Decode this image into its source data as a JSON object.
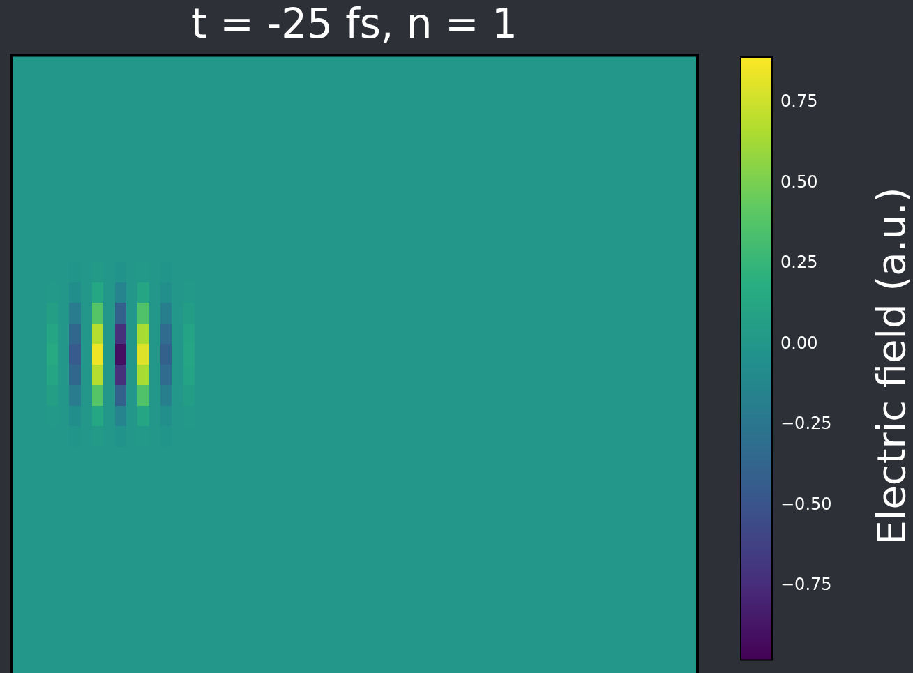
{
  "chart_data": {
    "type": "heatmap",
    "title": "t = -25 fs, n = 1",
    "clabel": "Electric field (a.u.)",
    "categories": [
      null,
      null,
      null,
      null,
      null,
      null,
      null,
      null,
      null,
      null,
      null,
      null,
      null,
      null,
      null,
      null,
      null,
      null,
      null,
      null,
      null,
      null,
      null,
      null,
      null,
      null,
      null,
      null,
      null,
      null,
      null,
      null,
      null,
      null,
      null,
      null,
      null,
      null,
      null,
      null,
      null,
      null,
      null,
      null,
      null,
      null,
      null,
      null,
      null,
      null,
      null,
      null,
      null,
      null,
      null,
      null,
      null,
      null,
      null,
      null
    ],
    "y_categories": [
      null,
      null,
      null,
      null,
      null,
      null,
      null,
      null,
      null,
      null,
      null,
      null,
      null,
      null,
      null,
      null,
      null,
      null,
      null,
      null,
      null,
      null,
      null,
      null,
      null,
      null,
      null,
      null,
      null,
      null
    ],
    "clim": [
      -0.98,
      0.89
    ],
    "cticks": [
      {
        "value": -0.75,
        "label": "−0.75"
      },
      {
        "value": -0.5,
        "label": "−0.50"
      },
      {
        "value": -0.25,
        "label": "−0.25"
      },
      {
        "value": 0,
        "label": "0.00"
      },
      {
        "value": 0.25,
        "label": "0.25"
      },
      {
        "value": 0.5,
        "label": "0.50"
      },
      {
        "value": 0.75,
        "label": "0.75"
      }
    ],
    "cells": [
      [
        0,
        0,
        0,
        0,
        0,
        0,
        0,
        0,
        0,
        0,
        0,
        0,
        0,
        0,
        0,
        0,
        0,
        0,
        0,
        0,
        0,
        0,
        0,
        0,
        0,
        0,
        0,
        0,
        0,
        0,
        0,
        0,
        0,
        0,
        0,
        0,
        0,
        0,
        0,
        0,
        0,
        0,
        0,
        0,
        0,
        0,
        0,
        0,
        0,
        0,
        0,
        0,
        0,
        0,
        0,
        0,
        0,
        0,
        0,
        0
      ],
      [
        0,
        0,
        0,
        0,
        0,
        0,
        0,
        0,
        0,
        0,
        0,
        0,
        0,
        0,
        0,
        0,
        0,
        0,
        0,
        0,
        0,
        0,
        0,
        0,
        0,
        0,
        0,
        0,
        0,
        0,
        0,
        0,
        0,
        0,
        0,
        0,
        0,
        0,
        0,
        0,
        0,
        0,
        0,
        0,
        0,
        0,
        0,
        0,
        0,
        0,
        0,
        0,
        0,
        0,
        0,
        0,
        0,
        0,
        0,
        0
      ],
      [
        0,
        0,
        0,
        0,
        0,
        0,
        0,
        0,
        0,
        0,
        0,
        0,
        0,
        0,
        0,
        0,
        0,
        0,
        0,
        0,
        0,
        0,
        0,
        0,
        0,
        0,
        0,
        0,
        0,
        0,
        0,
        0,
        0,
        0,
        0,
        0,
        0,
        0,
        0,
        0,
        0,
        0,
        0,
        0,
        0,
        0,
        0,
        0,
        0,
        0,
        0,
        0,
        0,
        0,
        0,
        0,
        0,
        0,
        0,
        0
      ],
      [
        0,
        0,
        0,
        0,
        0,
        0,
        0,
        0,
        0,
        0,
        0,
        0,
        0,
        0,
        0,
        0,
        0,
        0,
        0,
        0,
        0,
        0,
        0,
        0,
        0,
        0,
        0,
        0,
        0,
        0,
        0,
        0,
        0,
        0,
        0,
        0,
        0,
        0,
        0,
        0,
        0,
        0,
        0,
        0,
        0,
        0,
        0,
        0,
        0,
        0,
        0,
        0,
        0,
        0,
        0,
        0,
        0,
        0,
        0,
        0
      ],
      [
        0,
        0,
        0,
        0,
        0,
        0,
        0,
        0,
        0,
        0,
        0,
        0,
        0,
        0,
        0,
        0,
        0,
        0,
        0,
        0,
        0,
        0,
        0,
        0,
        0,
        0,
        0,
        0,
        0,
        0,
        0,
        0,
        0,
        0,
        0,
        0,
        0,
        0,
        0,
        0,
        0,
        0,
        0,
        0,
        0,
        0,
        0,
        0,
        0,
        0,
        0,
        0,
        0,
        0,
        0,
        0,
        0,
        0,
        0,
        0
      ],
      [
        0,
        0,
        0,
        0,
        0,
        0,
        0,
        0,
        0,
        0,
        0,
        0,
        0,
        0,
        0,
        0,
        0,
        0,
        0,
        0,
        0,
        0,
        0,
        0,
        0,
        0,
        0,
        0,
        0,
        0,
        0,
        0,
        0,
        0,
        0,
        0,
        0,
        0,
        0,
        0,
        0,
        0,
        0,
        0,
        0,
        0,
        0,
        0,
        0,
        0,
        0,
        0,
        0,
        0,
        0,
        0,
        0,
        0,
        0,
        0
      ],
      [
        0,
        0,
        0,
        0,
        0,
        0,
        0,
        0,
        0,
        0,
        0,
        0,
        0,
        0,
        0,
        0,
        0,
        0,
        0,
        0,
        0,
        0,
        0,
        0,
        0,
        0,
        0,
        0,
        0,
        0,
        0,
        0,
        0,
        0,
        0,
        0,
        0,
        0,
        0,
        0,
        0,
        0,
        0,
        0,
        0,
        0,
        0,
        0,
        0,
        0,
        0,
        0,
        0,
        0,
        0,
        0,
        0,
        0,
        0,
        0
      ],
      [
        0,
        0,
        0,
        0,
        0,
        0,
        0,
        0,
        0,
        0,
        0,
        0,
        0,
        0,
        0,
        0,
        0,
        0,
        0,
        0,
        0,
        0,
        0,
        0,
        0,
        0,
        0,
        0,
        0,
        0,
        0,
        0,
        0,
        0,
        0,
        0,
        0,
        0,
        0,
        0,
        0,
        0,
        0,
        0,
        0,
        0,
        0,
        0,
        0,
        0,
        0,
        0,
        0,
        0,
        0,
        0,
        0,
        0,
        0,
        0
      ],
      [
        0,
        0,
        0,
        0,
        0,
        0,
        0,
        0,
        0,
        0,
        0,
        0,
        0,
        0,
        0,
        0,
        0,
        0,
        0,
        0,
        0,
        0,
        0,
        0,
        0,
        0,
        0,
        0,
        0,
        0,
        0,
        0,
        0,
        0,
        0,
        0,
        0,
        0,
        0,
        0,
        0,
        0,
        0,
        0,
        0,
        0,
        0,
        0,
        0,
        0,
        0,
        0,
        0,
        0,
        0,
        0,
        0,
        0,
        0,
        0
      ],
      [
        0,
        0,
        0,
        0,
        0,
        0,
        0,
        0,
        0,
        0,
        0,
        0,
        0,
        0,
        0,
        0,
        0,
        0,
        0,
        0,
        0,
        0,
        0,
        0,
        0,
        0,
        0,
        0,
        0,
        0,
        0,
        0,
        0,
        0,
        0,
        0,
        0,
        0,
        0,
        0,
        0,
        0,
        0,
        0,
        0,
        0,
        0,
        0,
        0,
        0,
        0,
        0,
        0,
        0,
        0,
        0,
        0,
        0,
        0,
        0
      ],
      [
        0,
        0,
        0,
        0,
        0,
        -0.01,
        0,
        0.03,
        0,
        -0.03,
        0,
        0.02,
        0,
        -0.01,
        0,
        0,
        0,
        0,
        0,
        0,
        0,
        0,
        0,
        0,
        0,
        0,
        0,
        0,
        0,
        0,
        0,
        0,
        0,
        0,
        0,
        0,
        0,
        0,
        0,
        0,
        0,
        0,
        0,
        0,
        0,
        0,
        0,
        0,
        0,
        0,
        0,
        0,
        0,
        0,
        0,
        0,
        0,
        0,
        0,
        0
      ],
      [
        0,
        0,
        0,
        0.02,
        0,
        -0.07,
        0,
        0.13,
        0,
        -0.14,
        0,
        0.12,
        0,
        -0.06,
        0,
        0.02,
        0,
        0,
        0,
        0,
        0,
        0,
        0,
        0,
        0,
        0,
        0,
        0,
        0,
        0,
        0,
        0,
        0,
        0,
        0,
        0,
        0,
        0,
        0,
        0,
        0,
        0,
        0,
        0,
        0,
        0,
        0,
        0,
        0,
        0,
        0,
        0,
        0,
        0,
        0,
        0,
        0,
        0,
        0,
        0
      ],
      [
        0,
        0,
        0,
        0.07,
        0,
        -0.2,
        0,
        0.38,
        0,
        -0.41,
        0,
        0.36,
        0,
        -0.18,
        0,
        0.05,
        0,
        0,
        0,
        0,
        0,
        0,
        0,
        0,
        0,
        0,
        0,
        0,
        0,
        0,
        0,
        0,
        0,
        0,
        0,
        0,
        0,
        0,
        0,
        0,
        0,
        0,
        0,
        0,
        0,
        0,
        0,
        0,
        0,
        0,
        0,
        0,
        0,
        0,
        0,
        0,
        0,
        0,
        0,
        0
      ],
      [
        0,
        0,
        0,
        0.12,
        0,
        -0.36,
        0,
        0.68,
        0,
        -0.72,
        0,
        0.64,
        0,
        -0.32,
        0,
        0.1,
        0,
        0,
        0,
        0,
        0,
        0,
        0,
        0,
        0,
        0,
        0,
        0,
        0,
        0,
        0,
        0,
        0,
        0,
        0,
        0,
        0,
        0,
        0,
        0,
        0,
        0,
        0,
        0,
        0,
        0,
        0,
        0,
        0,
        0,
        0,
        0,
        0,
        0,
        0,
        0,
        0,
        0,
        0,
        0
      ],
      [
        0,
        0,
        0,
        0.15,
        0,
        -0.45,
        0,
        0.85,
        0,
        -0.9,
        0,
        0.8,
        0,
        -0.4,
        0,
        0.12,
        0,
        0,
        0,
        0,
        0,
        0,
        0,
        0,
        0,
        0,
        0,
        0,
        0,
        0,
        0,
        0,
        0,
        0,
        0,
        0,
        0,
        0,
        0,
        0,
        0,
        0,
        0,
        0,
        0,
        0,
        0,
        0,
        0,
        0,
        0,
        0,
        0,
        0,
        0,
        0,
        0,
        0,
        0,
        0
      ],
      [
        0,
        0,
        0,
        0.12,
        0,
        -0.36,
        0,
        0.68,
        0,
        -0.72,
        0,
        0.64,
        0,
        -0.32,
        0,
        0.1,
        0,
        0,
        0,
        0,
        0,
        0,
        0,
        0,
        0,
        0,
        0,
        0,
        0,
        0,
        0,
        0,
        0,
        0,
        0,
        0,
        0,
        0,
        0,
        0,
        0,
        0,
        0,
        0,
        0,
        0,
        0,
        0,
        0,
        0,
        0,
        0,
        0,
        0,
        0,
        0,
        0,
        0,
        0,
        0
      ],
      [
        0,
        0,
        0,
        0.07,
        0,
        -0.2,
        0,
        0.38,
        0,
        -0.41,
        0,
        0.36,
        0,
        -0.18,
        0,
        0.05,
        0,
        0,
        0,
        0,
        0,
        0,
        0,
        0,
        0,
        0,
        0,
        0,
        0,
        0,
        0,
        0,
        0,
        0,
        0,
        0,
        0,
        0,
        0,
        0,
        0,
        0,
        0,
        0,
        0,
        0,
        0,
        0,
        0,
        0,
        0,
        0,
        0,
        0,
        0,
        0,
        0,
        0,
        0,
        0
      ],
      [
        0,
        0,
        0,
        0.02,
        0,
        -0.07,
        0,
        0.13,
        0,
        -0.14,
        0,
        0.12,
        0,
        -0.06,
        0,
        0.02,
        0,
        0,
        0,
        0,
        0,
        0,
        0,
        0,
        0,
        0,
        0,
        0,
        0,
        0,
        0,
        0,
        0,
        0,
        0,
        0,
        0,
        0,
        0,
        0,
        0,
        0,
        0,
        0,
        0,
        0,
        0,
        0,
        0,
        0,
        0,
        0,
        0,
        0,
        0,
        0,
        0,
        0,
        0,
        0
      ],
      [
        0,
        0,
        0,
        0,
        0,
        -0.01,
        0,
        0.03,
        0,
        -0.03,
        0,
        0.02,
        0,
        -0.01,
        0,
        0,
        0,
        0,
        0,
        0,
        0,
        0,
        0,
        0,
        0,
        0,
        0,
        0,
        0,
        0,
        0,
        0,
        0,
        0,
        0,
        0,
        0,
        0,
        0,
        0,
        0,
        0,
        0,
        0,
        0,
        0,
        0,
        0,
        0,
        0,
        0,
        0,
        0,
        0,
        0,
        0,
        0,
        0,
        0,
        0
      ],
      [
        0,
        0,
        0,
        0,
        0,
        0,
        0,
        0,
        0,
        0,
        0,
        0,
        0,
        0,
        0,
        0,
        0,
        0,
        0,
        0,
        0,
        0,
        0,
        0,
        0,
        0,
        0,
        0,
        0,
        0,
        0,
        0,
        0,
        0,
        0,
        0,
        0,
        0,
        0,
        0,
        0,
        0,
        0,
        0,
        0,
        0,
        0,
        0,
        0,
        0,
        0,
        0,
        0,
        0,
        0,
        0,
        0,
        0,
        0,
        0
      ],
      [
        0,
        0,
        0,
        0,
        0,
        0,
        0,
        0,
        0,
        0,
        0,
        0,
        0,
        0,
        0,
        0,
        0,
        0,
        0,
        0,
        0,
        0,
        0,
        0,
        0,
        0,
        0,
        0,
        0,
        0,
        0,
        0,
        0,
        0,
        0,
        0,
        0,
        0,
        0,
        0,
        0,
        0,
        0,
        0,
        0,
        0,
        0,
        0,
        0,
        0,
        0,
        0,
        0,
        0,
        0,
        0,
        0,
        0,
        0,
        0
      ],
      [
        0,
        0,
        0,
        0,
        0,
        0,
        0,
        0,
        0,
        0,
        0,
        0,
        0,
        0,
        0,
        0,
        0,
        0,
        0,
        0,
        0,
        0,
        0,
        0,
        0,
        0,
        0,
        0,
        0,
        0,
        0,
        0,
        0,
        0,
        0,
        0,
        0,
        0,
        0,
        0,
        0,
        0,
        0,
        0,
        0,
        0,
        0,
        0,
        0,
        0,
        0,
        0,
        0,
        0,
        0,
        0,
        0,
        0,
        0,
        0
      ],
      [
        0,
        0,
        0,
        0,
        0,
        0,
        0,
        0,
        0,
        0,
        0,
        0,
        0,
        0,
        0,
        0,
        0,
        0,
        0,
        0,
        0,
        0,
        0,
        0,
        0,
        0,
        0,
        0,
        0,
        0,
        0,
        0,
        0,
        0,
        0,
        0,
        0,
        0,
        0,
        0,
        0,
        0,
        0,
        0,
        0,
        0,
        0,
        0,
        0,
        0,
        0,
        0,
        0,
        0,
        0,
        0,
        0,
        0,
        0,
        0
      ],
      [
        0,
        0,
        0,
        0,
        0,
        0,
        0,
        0,
        0,
        0,
        0,
        0,
        0,
        0,
        0,
        0,
        0,
        0,
        0,
        0,
        0,
        0,
        0,
        0,
        0,
        0,
        0,
        0,
        0,
        0,
        0,
        0,
        0,
        0,
        0,
        0,
        0,
        0,
        0,
        0,
        0,
        0,
        0,
        0,
        0,
        0,
        0,
        0,
        0,
        0,
        0,
        0,
        0,
        0,
        0,
        0,
        0,
        0,
        0,
        0
      ],
      [
        0,
        0,
        0,
        0,
        0,
        0,
        0,
        0,
        0,
        0,
        0,
        0,
        0,
        0,
        0,
        0,
        0,
        0,
        0,
        0,
        0,
        0,
        0,
        0,
        0,
        0,
        0,
        0,
        0,
        0,
        0,
        0,
        0,
        0,
        0,
        0,
        0,
        0,
        0,
        0,
        0,
        0,
        0,
        0,
        0,
        0,
        0,
        0,
        0,
        0,
        0,
        0,
        0,
        0,
        0,
        0,
        0,
        0,
        0,
        0
      ],
      [
        0,
        0,
        0,
        0,
        0,
        0,
        0,
        0,
        0,
        0,
        0,
        0,
        0,
        0,
        0,
        0,
        0,
        0,
        0,
        0,
        0,
        0,
        0,
        0,
        0,
        0,
        0,
        0,
        0,
        0,
        0,
        0,
        0,
        0,
        0,
        0,
        0,
        0,
        0,
        0,
        0,
        0,
        0,
        0,
        0,
        0,
        0,
        0,
        0,
        0,
        0,
        0,
        0,
        0,
        0,
        0,
        0,
        0,
        0,
        0
      ],
      [
        0,
        0,
        0,
        0,
        0,
        0,
        0,
        0,
        0,
        0,
        0,
        0,
        0,
        0,
        0,
        0,
        0,
        0,
        0,
        0,
        0,
        0,
        0,
        0,
        0,
        0,
        0,
        0,
        0,
        0,
        0,
        0,
        0,
        0,
        0,
        0,
        0,
        0,
        0,
        0,
        0,
        0,
        0,
        0,
        0,
        0,
        0,
        0,
        0,
        0,
        0,
        0,
        0,
        0,
        0,
        0,
        0,
        0,
        0,
        0
      ],
      [
        0,
        0,
        0,
        0,
        0,
        0,
        0,
        0,
        0,
        0,
        0,
        0,
        0,
        0,
        0,
        0,
        0,
        0,
        0,
        0,
        0,
        0,
        0,
        0,
        0,
        0,
        0,
        0,
        0,
        0,
        0,
        0,
        0,
        0,
        0,
        0,
        0,
        0,
        0,
        0,
        0,
        0,
        0,
        0,
        0,
        0,
        0,
        0,
        0,
        0,
        0,
        0,
        0,
        0,
        0,
        0,
        0,
        0,
        0,
        0
      ],
      [
        0,
        0,
        0,
        0,
        0,
        0,
        0,
        0,
        0,
        0,
        0,
        0,
        0,
        0,
        0,
        0,
        0,
        0,
        0,
        0,
        0,
        0,
        0,
        0,
        0,
        0,
        0,
        0,
        0,
        0,
        0,
        0,
        0,
        0,
        0,
        0,
        0,
        0,
        0,
        0,
        0,
        0,
        0,
        0,
        0,
        0,
        0,
        0,
        0,
        0,
        0,
        0,
        0,
        0,
        0,
        0,
        0,
        0,
        0,
        0
      ],
      [
        0,
        0,
        0,
        0,
        0,
        0,
        0,
        0,
        0,
        0,
        0,
        0,
        0,
        0,
        0,
        0,
        0,
        0,
        0,
        0,
        0,
        0,
        0,
        0,
        0,
        0,
        0,
        0,
        0,
        0,
        0,
        0,
        0,
        0,
        0,
        0,
        0,
        0,
        0,
        0,
        0,
        0,
        0,
        0,
        0,
        0,
        0,
        0,
        0,
        0,
        0,
        0,
        0,
        0,
        0,
        0,
        0,
        0,
        0,
        0
      ]
    ]
  }
}
